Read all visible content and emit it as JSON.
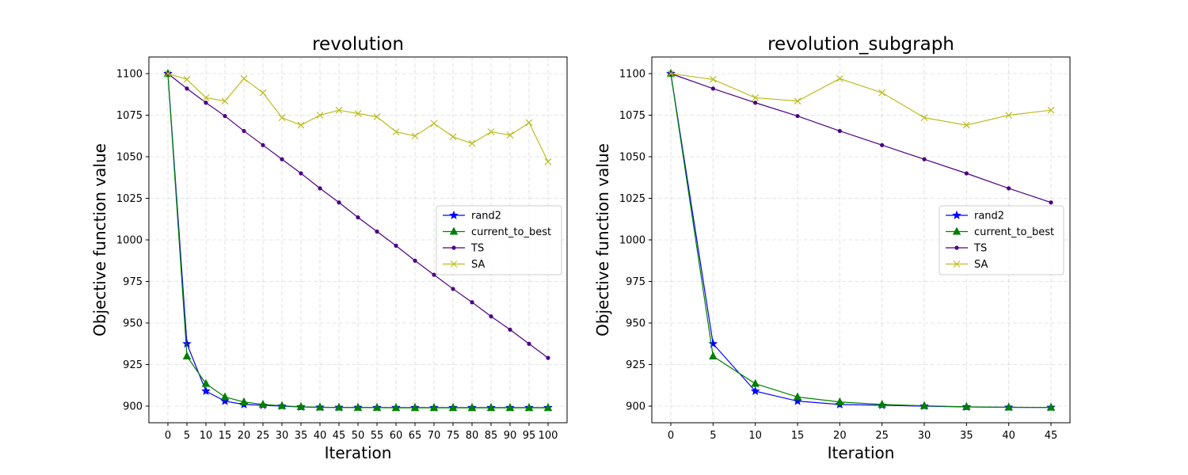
{
  "colors": {
    "rand2": "#0000ff",
    "current_to_best": "#008000",
    "TS": "#4b0082",
    "SA": "#bcbd22"
  },
  "chart_data": [
    {
      "type": "line",
      "title": "revolution",
      "xlabel": "Iteration",
      "ylabel": "Objective function value",
      "xlim": [
        -5,
        105
      ],
      "ylim": [
        890,
        1110
      ],
      "xticks": [
        0,
        5,
        10,
        15,
        20,
        25,
        30,
        35,
        40,
        45,
        50,
        55,
        60,
        65,
        70,
        75,
        80,
        85,
        90,
        95,
        100
      ],
      "yticks": [
        900,
        925,
        950,
        975,
        1000,
        1025,
        1050,
        1075,
        1100
      ],
      "grid": true,
      "legend_position": "center-right",
      "x": [
        0,
        5,
        10,
        15,
        20,
        25,
        30,
        35,
        40,
        45,
        50,
        55,
        60,
        65,
        70,
        75,
        80,
        85,
        90,
        95,
        100
      ],
      "series": [
        {
          "name": "rand2",
          "marker": "star",
          "color": "#0000ff",
          "values": [
            1100,
            937.5,
            909,
            903,
            901,
            900.5,
            900,
            899.5,
            899.3,
            899.2,
            899.2,
            899.1,
            899.1,
            899.1,
            899.1,
            899.1,
            899.1,
            899.1,
            899.1,
            899.1,
            899.1
          ]
        },
        {
          "name": "current_to_best",
          "marker": "triangle",
          "color": "#008000",
          "values": [
            1100,
            930,
            913.5,
            905.5,
            902.5,
            901,
            900.2,
            899.6,
            899.3,
            899.2,
            899.1,
            899.1,
            899,
            899,
            899,
            899,
            899,
            899,
            899,
            899,
            899
          ]
        },
        {
          "name": "TS",
          "marker": "dot",
          "color": "#4b0082",
          "values": [
            1100,
            1091,
            1082.5,
            1074.5,
            1065.5,
            1057,
            1048.5,
            1040,
            1031,
            1022.5,
            1013.5,
            1005,
            996.5,
            987.5,
            979,
            970.5,
            962.5,
            954,
            946,
            937.5,
            929
          ]
        },
        {
          "name": "SA",
          "marker": "x",
          "color": "#bcbd22",
          "values": [
            1100,
            1096.5,
            1085.5,
            1083.5,
            1097,
            1088.5,
            1073.5,
            1069,
            1075,
            1078,
            1076,
            1074,
            1065,
            1062.5,
            1070,
            1062,
            1058,
            1065,
            1063,
            1070.5,
            1047
          ]
        }
      ]
    },
    {
      "type": "line",
      "title": "revolution_subgraph",
      "xlabel": "Iteration",
      "ylabel": "Objective function value",
      "xlim": [
        -2.25,
        47.25
      ],
      "ylim": [
        890,
        1110
      ],
      "xticks": [
        0,
        5,
        10,
        15,
        20,
        25,
        30,
        35,
        40,
        45
      ],
      "yticks": [
        900,
        925,
        950,
        975,
        1000,
        1025,
        1050,
        1075,
        1100
      ],
      "grid": true,
      "legend_position": "center-right",
      "x": [
        0,
        5,
        10,
        15,
        20,
        25,
        30,
        35,
        40,
        45
      ],
      "series": [
        {
          "name": "rand2",
          "marker": "star",
          "color": "#0000ff",
          "values": [
            1100,
            937.5,
            909,
            903,
            901,
            900.5,
            900,
            899.5,
            899.3,
            899.2
          ]
        },
        {
          "name": "current_to_best",
          "marker": "triangle",
          "color": "#008000",
          "values": [
            1100,
            930,
            913.5,
            905.5,
            902.5,
            901,
            900.2,
            899.6,
            899.3,
            899.2
          ]
        },
        {
          "name": "TS",
          "marker": "dot",
          "color": "#4b0082",
          "values": [
            1100,
            1091,
            1082.5,
            1074.5,
            1065.5,
            1057,
            1048.5,
            1040,
            1031,
            1022.5
          ]
        },
        {
          "name": "SA",
          "marker": "x",
          "color": "#bcbd22",
          "values": [
            1100,
            1096.5,
            1085.5,
            1083.5,
            1097,
            1088.5,
            1073.5,
            1069,
            1075,
            1078
          ]
        }
      ]
    }
  ]
}
